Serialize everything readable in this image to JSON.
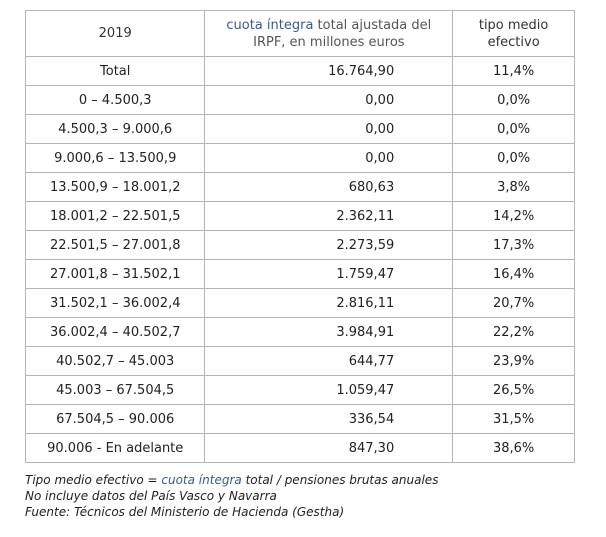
{
  "table": {
    "header": [
      "2019",
      {
        "highlight": "cuota íntegra",
        "rest": "total ajustada del IRPF, en millones euros"
      },
      "tipo medio efectivo"
    ],
    "rows": [
      [
        "Total",
        "16.764,90",
        "11,4%"
      ],
      [
        "0 – 4.500,3",
        "0,00",
        "0,0%"
      ],
      [
        "4.500,3 – 9.000,6",
        "0,00",
        "0,0%"
      ],
      [
        "9.000,6 – 13.500,9",
        "0,00",
        "0,0%"
      ],
      [
        "13.500,9 – 18.001,2",
        "680,63",
        "3,8%"
      ],
      [
        "18.001,2 – 22.501,5",
        "2.362,11",
        "14,2%"
      ],
      [
        "22.501,5 – 27.001,8",
        "2.273,59",
        "17,3%"
      ],
      [
        "27.001,8 – 31.502,1",
        "1.759,47",
        "16,4%"
      ],
      [
        "31.502,1 – 36.002,4",
        "2.816,11",
        "20,7%"
      ],
      [
        "36.002,4 – 40.502,7",
        "3.984,91",
        "22,2%"
      ],
      [
        "40.502,7 – 45.003",
        "644,77",
        "23,9%"
      ],
      [
        "45.003 – 67.504,5",
        "1.059,47",
        "26,5%"
      ],
      [
        "67.504,5 – 90.006",
        "336,54",
        "31,5%"
      ],
      [
        "90.006 - En adelante",
        "847,30",
        "38,6%"
      ]
    ]
  },
  "notes": [
    {
      "before": "Tipo medio efectivo =",
      "highlight": "cuota íntegra",
      "after": "total / pensiones brutas anuales"
    },
    "No incluye datos del País Vasco y Navarra",
    "Fuente: Técnicos del Ministerio de Hacienda (Gestha)"
  ]
}
